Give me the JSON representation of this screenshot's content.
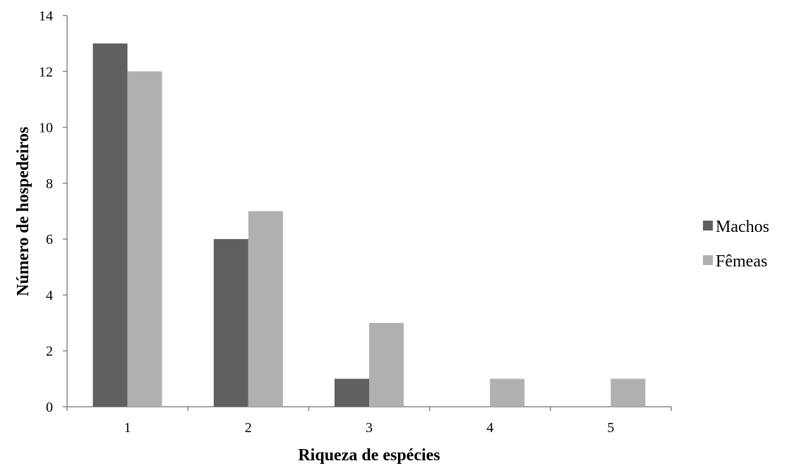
{
  "chart_data": {
    "type": "bar",
    "categories": [
      "1",
      "2",
      "3",
      "4",
      "5"
    ],
    "series": [
      {
        "name": "Machos",
        "values": [
          13,
          6,
          1,
          0,
          0
        ],
        "color": "#606060"
      },
      {
        "name": "Fêmeas",
        "values": [
          12,
          7,
          3,
          1,
          1
        ],
        "color": "#b0b0b0"
      }
    ],
    "title": "",
    "xlabel": "Riqueza de espécies",
    "ylabel": "Número de hospedeiros",
    "ylim": [
      0,
      14
    ],
    "yticks": [
      "0",
      "2",
      "4",
      "6",
      "8",
      "10",
      "12",
      "14"
    ],
    "grid": false,
    "legend_position": "right"
  }
}
